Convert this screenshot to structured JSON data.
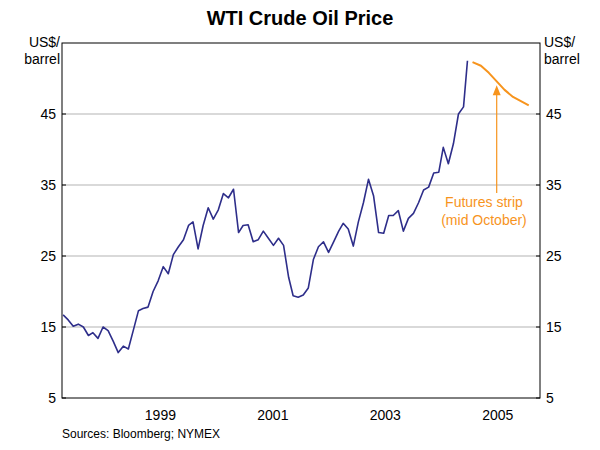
{
  "chart_data": {
    "type": "line",
    "title": "WTI Crude Oil Price",
    "ylabel": "US$/ barrel",
    "y2label": "US$/ barrel",
    "annotations": [
      "Futures strip",
      "(mid October)"
    ],
    "source": "Sources: Bloomberg; NYMEX",
    "xlim": [
      1997.75,
      2006.25
    ],
    "xticks": [
      {
        "value": 1999.5,
        "label": "1999"
      },
      {
        "value": 2001.5,
        "label": "2001"
      },
      {
        "value": 2003.5,
        "label": "2003"
      },
      {
        "value": 2005.5,
        "label": "2005"
      }
    ],
    "ylim": [
      5,
      55
    ],
    "yticks": [
      5,
      15,
      25,
      35,
      45
    ],
    "y2lim": [
      5,
      55
    ],
    "y2ticks": [
      5,
      15,
      25,
      35,
      45
    ],
    "grid": true,
    "series": [
      {
        "name": "WTI",
        "color": "#2e2e8a",
        "x": [
          1997.77,
          1997.86,
          1997.95,
          1998.04,
          1998.13,
          1998.22,
          1998.3,
          1998.39,
          1998.48,
          1998.57,
          1998.66,
          1998.75,
          1998.84,
          1998.93,
          1999.02,
          1999.11,
          1999.19,
          1999.28,
          1999.37,
          1999.46,
          1999.55,
          1999.64,
          1999.73,
          1999.82,
          1999.91,
          2000.0,
          2000.08,
          2000.17,
          2000.26,
          2000.35,
          2000.44,
          2000.53,
          2000.62,
          2000.71,
          2000.8,
          2000.89,
          2000.97,
          2001.06,
          2001.15,
          2001.24,
          2001.33,
          2001.42,
          2001.51,
          2001.6,
          2001.69,
          2001.78,
          2001.86,
          2001.95,
          2002.04,
          2002.13,
          2002.22,
          2002.31,
          2002.4,
          2002.49,
          2002.58,
          2002.67,
          2002.75,
          2002.84,
          2002.93,
          2003.02,
          2003.11,
          2003.2,
          2003.29,
          2003.38,
          2003.47,
          2003.56,
          2003.64,
          2003.73,
          2003.82,
          2003.91,
          2004.0,
          2004.09,
          2004.18,
          2004.27,
          2004.36,
          2004.45,
          2004.53,
          2004.62,
          2004.71,
          2004.8,
          2004.89,
          2004.96
        ],
        "values": [
          16.7,
          16.0,
          15.1,
          15.4,
          15.0,
          13.8,
          14.2,
          13.4,
          15.0,
          14.5,
          13.0,
          11.4,
          12.3,
          11.9,
          14.6,
          17.3,
          17.6,
          17.8,
          20.0,
          21.5,
          23.5,
          22.5,
          25.2,
          26.3,
          27.3,
          29.3,
          29.8,
          26.0,
          29.3,
          31.8,
          30.2,
          31.5,
          33.8,
          33.2,
          34.4,
          28.3,
          29.3,
          29.4,
          27.0,
          27.3,
          28.5,
          27.5,
          26.5,
          27.5,
          26.5,
          22.0,
          19.4,
          19.2,
          19.5,
          20.5,
          24.5,
          26.3,
          27.0,
          25.5,
          27.0,
          28.5,
          29.6,
          28.8,
          26.4,
          29.8,
          32.5,
          35.8,
          33.5,
          28.3,
          28.2,
          30.7,
          30.7,
          31.4,
          28.5,
          30.3,
          31.0,
          32.5,
          34.3,
          34.7,
          36.7,
          36.8,
          40.3,
          38.0,
          40.8,
          45.0,
          46.0,
          52.5
        ]
      },
      {
        "name": "Futures strip",
        "color": "#f7941d",
        "x": [
          2005.05,
          2005.2,
          2005.34,
          2005.48,
          2005.62,
          2005.77,
          2005.91,
          2006.05
        ],
        "values": [
          52.3,
          51.8,
          50.8,
          49.6,
          48.4,
          47.4,
          46.8,
          46.2
        ]
      }
    ]
  }
}
